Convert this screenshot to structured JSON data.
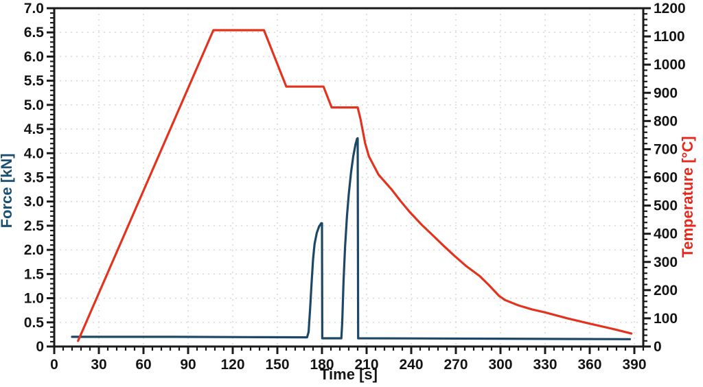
{
  "chart_data": {
    "type": "line",
    "title": "",
    "xlabel": "Time [s]",
    "ylabel_left": "Force [kN]",
    "ylabel_right": "Temperature [°C]",
    "grid": "dashed",
    "legend": "none",
    "x_axis": {
      "min": 0,
      "max": 396,
      "major_step": 30,
      "minor_step": 6,
      "tick_labels": [
        "0",
        "30",
        "60",
        "90",
        "120",
        "150",
        "180",
        "210",
        "240",
        "270",
        "300",
        "330",
        "360",
        "390"
      ]
    },
    "y_left": {
      "min": 0,
      "max": 7,
      "major_step": 0.5,
      "minor_step": 0.1,
      "tick_labels": [
        "0",
        "0.5",
        "1.0",
        "1.5",
        "2.0",
        "2.5",
        "3.0",
        "3.5",
        "4.0",
        "4.5",
        "5.0",
        "5.5",
        "6.0",
        "6.5",
        "7.0"
      ]
    },
    "y_right": {
      "min": 0,
      "max": 1200,
      "major_step": 100,
      "minor_step": 20,
      "tick_labels": [
        "0",
        "100",
        "200",
        "300",
        "400",
        "500",
        "600",
        "700",
        "800",
        "900",
        "1000",
        "1100",
        "1200"
      ]
    },
    "series": [
      {
        "name": "Force",
        "axis": "left",
        "color": "#1d4766",
        "points": [
          [
            12,
            0.2
          ],
          [
            80,
            0.2
          ],
          [
            130,
            0.195
          ],
          [
            170,
            0.19
          ],
          [
            171,
            0.3
          ],
          [
            172,
            0.78
          ],
          [
            173,
            1.3
          ],
          [
            174,
            1.8
          ],
          [
            175,
            2.12
          ],
          [
            176.5,
            2.35
          ],
          [
            178,
            2.48
          ],
          [
            179.5,
            2.55
          ],
          [
            180,
            2.55
          ],
          [
            180.2,
            0.17
          ],
          [
            186,
            0.17
          ],
          [
            193,
            0.17
          ],
          [
            193.6,
            0.5
          ],
          [
            194.5,
            1.35
          ],
          [
            195.5,
            2.05
          ],
          [
            196.8,
            2.7
          ],
          [
            198,
            3.15
          ],
          [
            199.5,
            3.6
          ],
          [
            201,
            3.93
          ],
          [
            202.5,
            4.18
          ],
          [
            203.6,
            4.3
          ],
          [
            204,
            4.31
          ],
          [
            204.3,
            0.17
          ],
          [
            240,
            0.168
          ],
          [
            300,
            0.162
          ],
          [
            345,
            0.156
          ],
          [
            387,
            0.152
          ]
        ]
      },
      {
        "name": "Temperature",
        "axis": "right",
        "color": "#e2331f",
        "points": [
          [
            16,
            20
          ],
          [
            107,
            1122
          ],
          [
            141,
            1122
          ],
          [
            156,
            922
          ],
          [
            181,
            922
          ],
          [
            186.5,
            848
          ],
          [
            204,
            848
          ],
          [
            206,
            805
          ],
          [
            209,
            722
          ],
          [
            211.5,
            675
          ],
          [
            218,
            610
          ],
          [
            227,
            556
          ],
          [
            233,
            515
          ],
          [
            239,
            477
          ],
          [
            247,
            432
          ],
          [
            255,
            392
          ],
          [
            262,
            356
          ],
          [
            269,
            322
          ],
          [
            277,
            285
          ],
          [
            286,
            250
          ],
          [
            292,
            219
          ],
          [
            299,
            180
          ],
          [
            303,
            165
          ],
          [
            312,
            146
          ],
          [
            321,
            132
          ],
          [
            330,
            121
          ],
          [
            345,
            100
          ],
          [
            360,
            81
          ],
          [
            375,
            63
          ],
          [
            388,
            46
          ]
        ]
      }
    ],
    "colors": {
      "force_line": "#1d4766",
      "force_title": "#1b4f72",
      "temperature_line": "#e2331f",
      "temperature_title": "#e8271b",
      "axis": "#1a1a1a",
      "tick_text": "#141414",
      "grid": "#d4d4d4",
      "background": "#ffffff"
    }
  }
}
